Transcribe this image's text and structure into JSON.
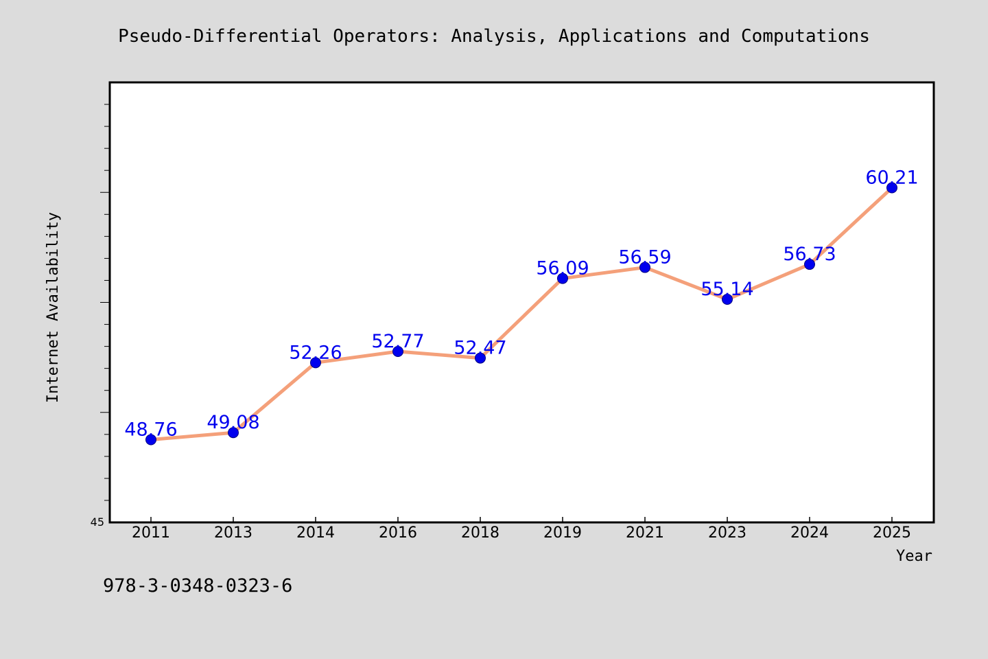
{
  "chart_data": {
    "type": "line",
    "title": "Pseudo-Differential Operators: Analysis, Applications and Computations",
    "xlabel": "Year",
    "ylabel": "Internet Availability",
    "caption": "978-3-0348-0323-6",
    "categories": [
      "2011",
      "2013",
      "2014",
      "2016",
      "2018",
      "2019",
      "2021",
      "2023",
      "2024",
      "2025"
    ],
    "series": [
      {
        "values": [
          48.76,
          49.08,
          52.26,
          52.77,
          52.47,
          56.09,
          56.59,
          55.14,
          56.73,
          60.21
        ],
        "data_labels": [
          "48.76",
          "49.08",
          "52.26",
          "52.77",
          "52.47",
          "56.09",
          "56.59",
          "55.14",
          "56.73",
          "60.21"
        ]
      }
    ],
    "ylim": [
      45,
      65
    ],
    "y_tick_labels": [
      "45"
    ],
    "grid": false,
    "legend": "none",
    "colors": {
      "line": "#f4a07a",
      "marker": "#0000ee",
      "marker_edge": "#000080",
      "data_label": "#0000ee",
      "plot_background": "#ffffff",
      "figure_background": "#dcdcdc",
      "axes_edge": "#000000"
    }
  }
}
